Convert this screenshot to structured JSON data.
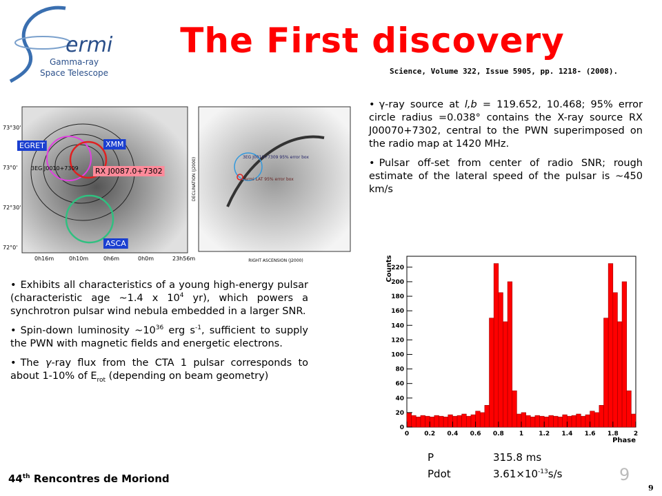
{
  "logo": {
    "mark": "ermi",
    "line1": "Gamma-ray",
    "line2": "Space Telescope"
  },
  "title": "The First discovery",
  "citation": "Science, Volume 322, Issue 5905, pp. 1218- (2008).",
  "right_bullets": [
    [
      {
        "text": "γ-ray source at "
      },
      {
        "text": "l,b",
        "style": "i"
      },
      {
        "text": " = 119.652, 10.468; 95% error circle radius =0.038° contains the X-ray source RX J00070+7302, central to the PWN superimposed on the radio map at 1420 MHz."
      }
    ],
    [
      {
        "text": "Pulsar off-set from center of radio SNR; rough estimate of the lateral speed of the pulsar is ~450 km/s"
      }
    ]
  ],
  "left_bullets": [
    [
      {
        "text": "Exhibits all characteristics of a young high-energy pulsar (characteristic age ~1.4 x 10"
      },
      {
        "text": "4",
        "style": "sup"
      },
      {
        "text": " yr), which powers a synchrotron pulsar wind nebula embedded in a larger SNR."
      }
    ],
    [
      {
        "text": "Spin-down luminosity ~10"
      },
      {
        "text": "36",
        "style": "sup"
      },
      {
        "text": " erg s"
      },
      {
        "text": "-1",
        "style": "sup"
      },
      {
        "text": ", sufficient to supply the PWN with magnetic fields and energetic electrons."
      }
    ],
    [
      {
        "text": "The "
      },
      {
        "text": "γ",
        "style": "i"
      },
      {
        "text": "-ray flux from the CTA 1 pulsar corresponds to about 1-10% of E"
      },
      {
        "text": "rot",
        "style": "sub"
      },
      {
        "text": " (depending on beam geometry)"
      }
    ]
  ],
  "left_image": {
    "labels": [
      "EGRET",
      "XMM",
      "3EG J0010+7309",
      "RX J0087.0+7302",
      "ASCA"
    ],
    "yticks": [
      "73°30'",
      "73°0'",
      "72°30'",
      "72°0'"
    ],
    "xticks": [
      "0h16m",
      "0h10m",
      "0h6m",
      "0h0m",
      "23h56m"
    ]
  },
  "right_image": {
    "labels": [
      "3EG J0010+7309 95% error box",
      "Fermi LAT 95% error box"
    ],
    "xlabel": "RIGHT ASCENSION (J2000)",
    "ylabel": "DECLINATION (J2000)"
  },
  "histogram": {
    "type": "histogram",
    "xlabel": "Phase",
    "ylabel": "Counts",
    "color": "#ff0000",
    "bins": [
      0,
      0.04,
      0.08,
      0.12,
      0.16,
      0.2,
      0.24,
      0.28,
      0.32,
      0.36,
      0.4,
      0.44,
      0.48,
      0.52,
      0.56,
      0.6,
      0.64,
      0.68,
      0.72,
      0.76,
      0.8,
      0.84,
      0.88,
      0.92,
      0.96,
      1,
      1.04,
      1.08,
      1.12,
      1.16,
      1.2,
      1.24,
      1.28,
      1.32,
      1.36,
      1.4,
      1.44,
      1.48,
      1.52,
      1.56,
      1.6,
      1.64,
      1.68,
      1.72,
      1.76,
      1.8,
      1.84,
      1.88,
      1.92,
      1.96,
      2
    ],
    "counts": [
      20,
      16,
      14,
      16,
      15,
      14,
      16,
      15,
      14,
      17,
      15,
      16,
      18,
      15,
      17,
      22,
      20,
      30,
      150,
      225,
      185,
      145,
      200,
      50,
      18,
      20,
      16,
      14,
      16,
      15,
      14,
      16,
      15,
      14,
      17,
      15,
      16,
      18,
      15,
      17,
      22,
      20,
      30,
      150,
      225,
      185,
      145,
      200,
      50,
      18
    ],
    "xlim": [
      0,
      2
    ],
    "ylim": [
      0,
      235
    ],
    "xticks": [
      0,
      0.2,
      0.4,
      0.6,
      0.8,
      1,
      1.2,
      1.4,
      1.6,
      1.8,
      2
    ],
    "yticks": [
      0,
      20,
      40,
      60,
      80,
      100,
      120,
      140,
      160,
      180,
      200,
      220
    ]
  },
  "params": [
    {
      "name": "P",
      "value": [
        {
          "text": "315.8 ms"
        }
      ]
    },
    {
      "name": "Pdot",
      "value": [
        {
          "text": "3.61×10"
        },
        {
          "text": "-13",
          "style": "sup"
        },
        {
          "text": "s/s"
        }
      ]
    }
  ],
  "footer": [
    {
      "text": "44"
    },
    {
      "text": "th",
      "style": "sup"
    },
    {
      "text": " Rencontres de Moriond"
    }
  ],
  "page_number": "9",
  "page_number_small": "9"
}
